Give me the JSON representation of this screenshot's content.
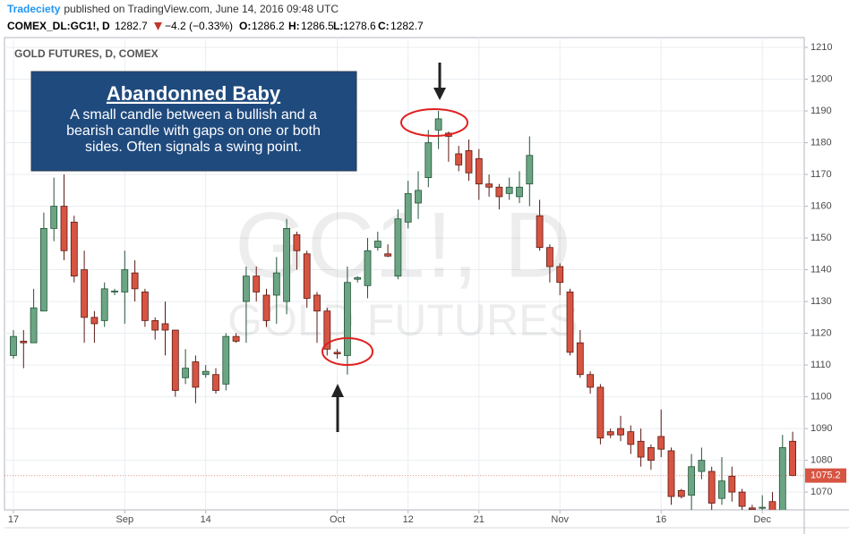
{
  "header": {
    "author": "Tradeciety",
    "published": "published on TradingView.com, June 14, 2016 09:48 UTC",
    "symbol": "COMEX_DL:GC1!, D",
    "last": "1282.7",
    "change": "−4.2 (−0.33%)",
    "open_label": "O:",
    "open": "1286.2",
    "high_label": "H:",
    "high": "1286.5",
    "low_label": "L:",
    "low": "1278.6",
    "close_label": "C:",
    "close": "1282.7"
  },
  "chart_data": {
    "type": "candlestick",
    "title": "GOLD FUTURES, D, COMEX",
    "watermark": "GC1!, D",
    "watermark_subtitle": "GOLD FUTURES",
    "annotation": {
      "title": "Abandonned Baby",
      "lines": [
        "A small candle between a bullish and a",
        "bearish candle with gaps on one or both",
        "sides. Often signals a swing point."
      ]
    },
    "categories": [
      "17",
      null,
      null,
      null,
      null,
      null,
      null,
      null,
      null,
      null,
      null,
      "Sep",
      null,
      null,
      null,
      null,
      null,
      null,
      null,
      "14",
      null,
      null,
      null,
      null,
      null,
      null,
      null,
      null,
      null,
      null,
      null,
      null,
      "Oct",
      null,
      null,
      null,
      null,
      null,
      null,
      "12",
      null,
      null,
      null,
      null,
      null,
      null,
      "21",
      null,
      null,
      null,
      null,
      null,
      null,
      null,
      "Nov",
      null,
      null,
      null,
      null,
      null,
      null,
      null,
      null,
      null,
      "16",
      null,
      null,
      null,
      null,
      null,
      null,
      null,
      null,
      null,
      "Dec",
      null,
      null,
      null
    ],
    "open": [
      1113,
      1117.5,
      1117,
      1127,
      1153,
      1160,
      1155,
      1140,
      1125,
      1124,
      1133,
      1133,
      1139,
      1133,
      1124,
      1123,
      1121,
      1106,
      1111,
      1107,
      1107,
      1104,
      1119,
      1130,
      1138,
      1132,
      1132,
      1130,
      1151,
      1145,
      1132,
      1127,
      1114,
      1113,
      1137,
      1135,
      1147,
      1145,
      1138,
      1155,
      1161,
      1169,
      1184,
      1183,
      1176.5,
      1177.5,
      1175,
      1167,
      1166,
      1164,
      1163,
      1167,
      1157,
      1147,
      1141,
      1133,
      1117,
      1107,
      1103,
      1089,
      1090,
      1089,
      1086,
      1084,
      1087.5,
      1083,
      1070.5,
      1069,
      1076.5,
      1076.5,
      1068,
      1075,
      1070,
      1065,
      1065,
      1067,
      1064,
      1086
    ],
    "high": [
      1121,
      1121,
      1134,
      1158,
      1169,
      1170,
      1157,
      1146,
      1127,
      1136,
      1134,
      1146,
      1143,
      1134,
      1125,
      1130,
      1121,
      1115,
      1113,
      1110,
      1109,
      1120,
      1120,
      1141,
      1141,
      1134,
      1144,
      1156,
      1152,
      1146,
      1133,
      1128,
      1115,
      1141,
      1138,
      1150,
      1152,
      1148,
      1159,
      1168,
      1171,
      1184,
      1190,
      1183.5,
      1179,
      1181,
      1178,
      1170,
      1167,
      1169,
      1171,
      1182,
      1162,
      1148,
      1142,
      1134,
      1121,
      1108,
      1104,
      1090,
      1094,
      1091,
      1090,
      1085,
      1096,
      1084,
      1071,
      1082,
      1084,
      1078,
      1081,
      1078,
      1071,
      1066,
      1069,
      1070,
      1088,
      1089
    ],
    "low": [
      1112,
      1109,
      1117,
      1127,
      1149,
      1143,
      1136,
      1117,
      1117,
      1122,
      1132,
      1123,
      1130,
      1122,
      1118,
      1113,
      1100,
      1104,
      1098,
      1106,
      1101,
      1102,
      1117,
      1117,
      1130,
      1122,
      1123,
      1126,
      1140,
      1128,
      1117,
      1113,
      1112,
      1107,
      1136,
      1131,
      1146,
      1144,
      1137,
      1153,
      1156,
      1166,
      1178,
      1174,
      1171,
      1168,
      1162,
      1163,
      1159,
      1162,
      1161,
      1160,
      1146,
      1136,
      1132,
      1113,
      1106,
      1101,
      1085,
      1087,
      1086,
      1082,
      1078,
      1077,
      1081,
      1066,
      1068,
      1064,
      1074,
      1063,
      1066,
      1067,
      1063,
      1064,
      1064,
      1064,
      1064,
      1075
    ],
    "close": [
      1119,
      1117,
      1128,
      1153,
      1160,
      1146,
      1138,
      1125,
      1123,
      1134,
      1133.3,
      1140,
      1134,
      1124,
      1121,
      1121,
      1102,
      1109,
      1103,
      1108,
      1102,
      1119,
      1117.5,
      1138,
      1133,
      1124,
      1139,
      1153,
      1146,
      1131,
      1127,
      1115,
      1113.5,
      1136,
      1137.5,
      1146,
      1149,
      1144.3,
      1156,
      1164,
      1165,
      1180,
      1187.5,
      1182,
      1173,
      1170.5,
      1167,
      1166,
      1163,
      1166,
      1166,
      1176,
      1147,
      1141,
      1136,
      1114,
      1107,
      1103,
      1087,
      1088,
      1088,
      1085,
      1081,
      1080,
      1083.5,
      1068.6,
      1068.6,
      1078,
      1080,
      1066.5,
      1073.5,
      1070,
      1065.5,
      1064.5,
      1065.2,
      1064.2,
      1084,
      1075.2
    ],
    "up_color": "#6ba583",
    "down_color": "#d75442",
    "last_price": 1075.2,
    "ylim": [
      1064.4,
      1213.1
    ],
    "yticks": [
      1070,
      1080,
      1090,
      1100,
      1110,
      1120,
      1130,
      1140,
      1150,
      1160,
      1170,
      1180,
      1190,
      1200,
      1210
    ],
    "grid": true
  }
}
